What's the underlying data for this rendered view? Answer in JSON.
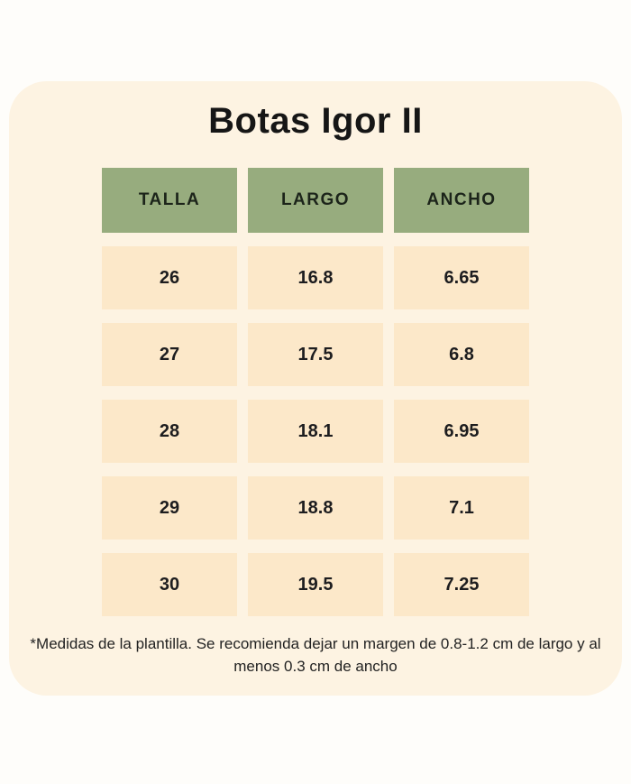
{
  "header": {
    "title": "Botas Igor II"
  },
  "footnote": {
    "text": "*Medidas de la plantilla. Se recomienda dejar un margen de 0.8-1.2 cm de largo y al menos 0.3 cm de ancho"
  },
  "colors": {
    "page_bg": "#fefdfa",
    "card_bg": "#fdf3e2",
    "header_cell_bg": "#97ac7e",
    "data_cell_bg": "#fce8c9",
    "text": "#1d1d1f"
  },
  "chart_data": {
    "type": "table",
    "title": "Botas Igor II",
    "columns": [
      "TALLA",
      "LARGO",
      "ANCHO"
    ],
    "rows": [
      [
        "26",
        "16.8",
        "6.65"
      ],
      [
        "27",
        "17.5",
        "6.8"
      ],
      [
        "28",
        "18.1",
        "6.95"
      ],
      [
        "29",
        "18.8",
        "7.1"
      ],
      [
        "30",
        "19.5",
        "7.25"
      ]
    ],
    "footnote": "*Medidas de la plantilla. Se recomienda dejar un margen de 0.8-1.2 cm de largo y al menos 0.3 cm de ancho"
  }
}
